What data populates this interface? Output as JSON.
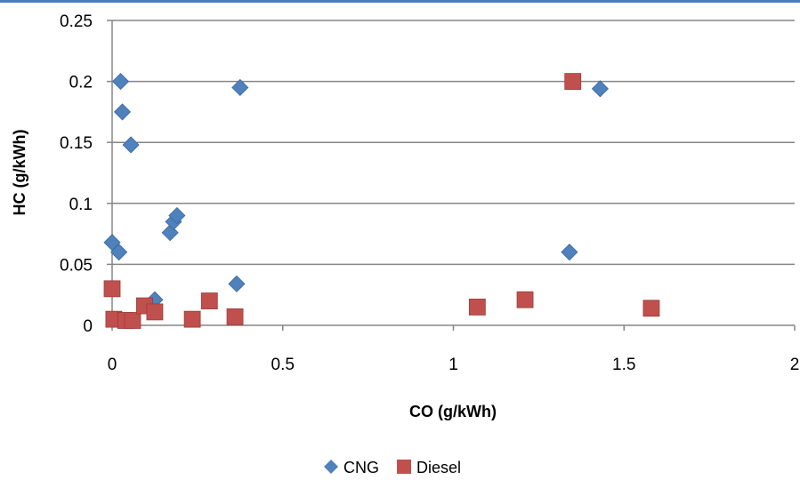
{
  "chart_data": {
    "type": "scatter",
    "title": "",
    "xlabel": "CO (g/kWh)",
    "ylabel": "HC (g/kWh)",
    "xlim": [
      0,
      2
    ],
    "ylim": [
      0,
      0.25
    ],
    "x_ticks": [
      0,
      0.5,
      1,
      1.5,
      2
    ],
    "x_tick_labels": [
      "0",
      "0.5",
      "1",
      "1.5",
      "2"
    ],
    "y_ticks": [
      0,
      0.05,
      0.1,
      0.15,
      0.2,
      0.25
    ],
    "y_tick_labels": [
      "0",
      "0.05",
      "0.1",
      "0.15",
      "0.2",
      "0.25"
    ],
    "grid": "horizontal",
    "legend_position": "bottom",
    "series": [
      {
        "name": "CNG",
        "marker": "diamond",
        "color": "#4f81bd",
        "points": [
          {
            "x": 0.0,
            "y": 0.068
          },
          {
            "x": 0.02,
            "y": 0.06
          },
          {
            "x": 0.025,
            "y": 0.2
          },
          {
            "x": 0.03,
            "y": 0.175
          },
          {
            "x": 0.055,
            "y": 0.148
          },
          {
            "x": 0.125,
            "y": 0.021
          },
          {
            "x": 0.17,
            "y": 0.076
          },
          {
            "x": 0.18,
            "y": 0.085
          },
          {
            "x": 0.19,
            "y": 0.09
          },
          {
            "x": 0.365,
            "y": 0.034
          },
          {
            "x": 0.375,
            "y": 0.195
          },
          {
            "x": 1.34,
            "y": 0.06
          },
          {
            "x": 1.43,
            "y": 0.194
          }
        ]
      },
      {
        "name": "Diesel",
        "marker": "square",
        "color": "#c0504d",
        "points": [
          {
            "x": 0.0,
            "y": 0.03
          },
          {
            "x": 0.005,
            "y": 0.005
          },
          {
            "x": 0.04,
            "y": 0.004
          },
          {
            "x": 0.06,
            "y": 0.004
          },
          {
            "x": 0.095,
            "y": 0.016
          },
          {
            "x": 0.125,
            "y": 0.011
          },
          {
            "x": 0.235,
            "y": 0.005
          },
          {
            "x": 0.285,
            "y": 0.02
          },
          {
            "x": 0.36,
            "y": 0.007
          },
          {
            "x": 1.07,
            "y": 0.015
          },
          {
            "x": 1.21,
            "y": 0.021
          },
          {
            "x": 1.35,
            "y": 0.2
          },
          {
            "x": 1.58,
            "y": 0.014
          }
        ]
      }
    ]
  },
  "colors": {
    "top_rule": "#4a7ebb",
    "gridline": "#868686",
    "axis": "#868686"
  }
}
